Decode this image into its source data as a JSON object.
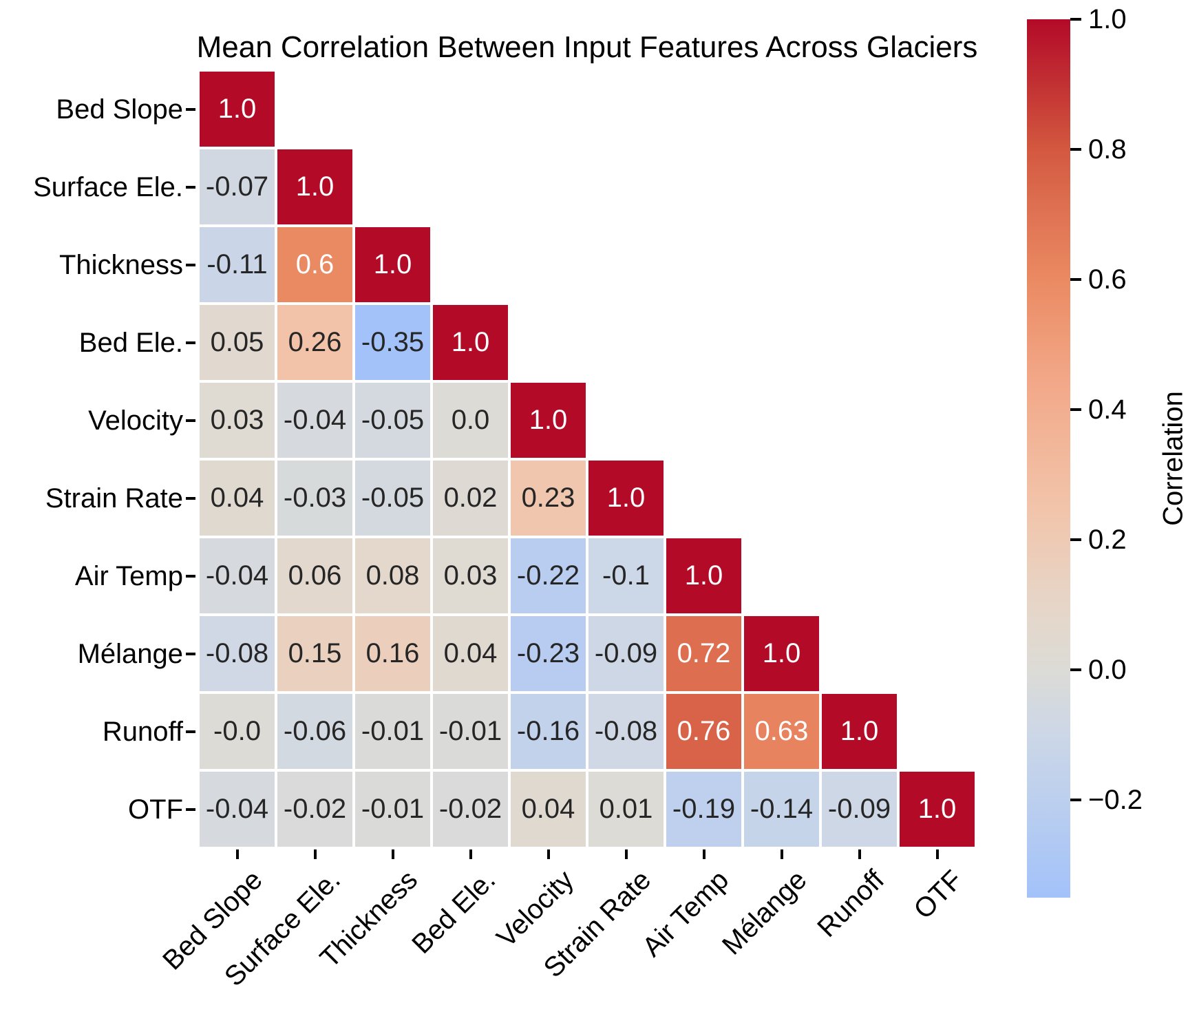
{
  "title": "Mean Correlation Between Input Features Across Glaciers",
  "chart_data": {
    "type": "heatmap",
    "title": "Mean Correlation Between Input Features Across Glaciers",
    "categories": [
      "Bed Slope",
      "Surface Ele.",
      "Thickness",
      "Bed Ele.",
      "Velocity",
      "Strain Rate",
      "Air Temp",
      "Mélange",
      "Runoff",
      "OTF"
    ],
    "matrix_display": [
      [
        "1.0"
      ],
      [
        "-0.07",
        "1.0"
      ],
      [
        "-0.11",
        "0.6",
        "1.0"
      ],
      [
        "0.05",
        "0.26",
        "-0.35",
        "1.0"
      ],
      [
        "0.03",
        "-0.04",
        "-0.05",
        "0.0",
        "1.0"
      ],
      [
        "0.04",
        "-0.03",
        "-0.05",
        "0.02",
        "0.23",
        "1.0"
      ],
      [
        "-0.04",
        "0.06",
        "0.08",
        "0.03",
        "-0.22",
        "-0.1",
        "1.0"
      ],
      [
        "-0.08",
        "0.15",
        "0.16",
        "0.04",
        "-0.23",
        "-0.09",
        "0.72",
        "1.0"
      ],
      [
        "-0.0",
        "-0.06",
        "-0.01",
        "-0.01",
        "-0.16",
        "-0.08",
        "0.76",
        "0.63",
        "1.0"
      ],
      [
        "-0.04",
        "-0.02",
        "-0.01",
        "-0.02",
        "0.04",
        "0.01",
        "-0.19",
        "-0.14",
        "-0.09",
        "1.0"
      ]
    ],
    "colorbar": {
      "label": "Correlation",
      "vmin": -0.35,
      "vmax": 1.0,
      "ticks": [
        {
          "label": "1.0",
          "v": 1.0
        },
        {
          "label": "0.8",
          "v": 0.8
        },
        {
          "label": "0.6",
          "v": 0.6
        },
        {
          "label": "0.4",
          "v": 0.4
        },
        {
          "label": "0.2",
          "v": 0.2
        },
        {
          "label": "0.0",
          "v": 0.0
        },
        {
          "label": "−0.2",
          "v": -0.2
        }
      ]
    },
    "colormap_anchors": [
      {
        "v": -0.35,
        "c": "#a3c2fa"
      },
      {
        "v": -0.2,
        "c": "#bccfee"
      },
      {
        "v": -0.1,
        "c": "#ccd7e7"
      },
      {
        "v": 0.0,
        "c": "#dcdbd6"
      },
      {
        "v": 0.1,
        "c": "#e6d6c8"
      },
      {
        "v": 0.25,
        "c": "#f2c4aa"
      },
      {
        "v": 0.45,
        "c": "#f2a787"
      },
      {
        "v": 0.6,
        "c": "#ea8a62"
      },
      {
        "v": 0.72,
        "c": "#dd6e50"
      },
      {
        "v": 0.8,
        "c": "#d3583f"
      },
      {
        "v": 0.9,
        "c": "#c23133"
      },
      {
        "v": 1.0,
        "c": "#b30a28"
      }
    ],
    "annotation_text_dark": "#262626",
    "annotation_text_light": "#ffffff",
    "white_text_threshold": 0.6,
    "grid_line_color": "#ffffff",
    "legend_position": "right",
    "x_tick_rotation_deg": 45
  }
}
